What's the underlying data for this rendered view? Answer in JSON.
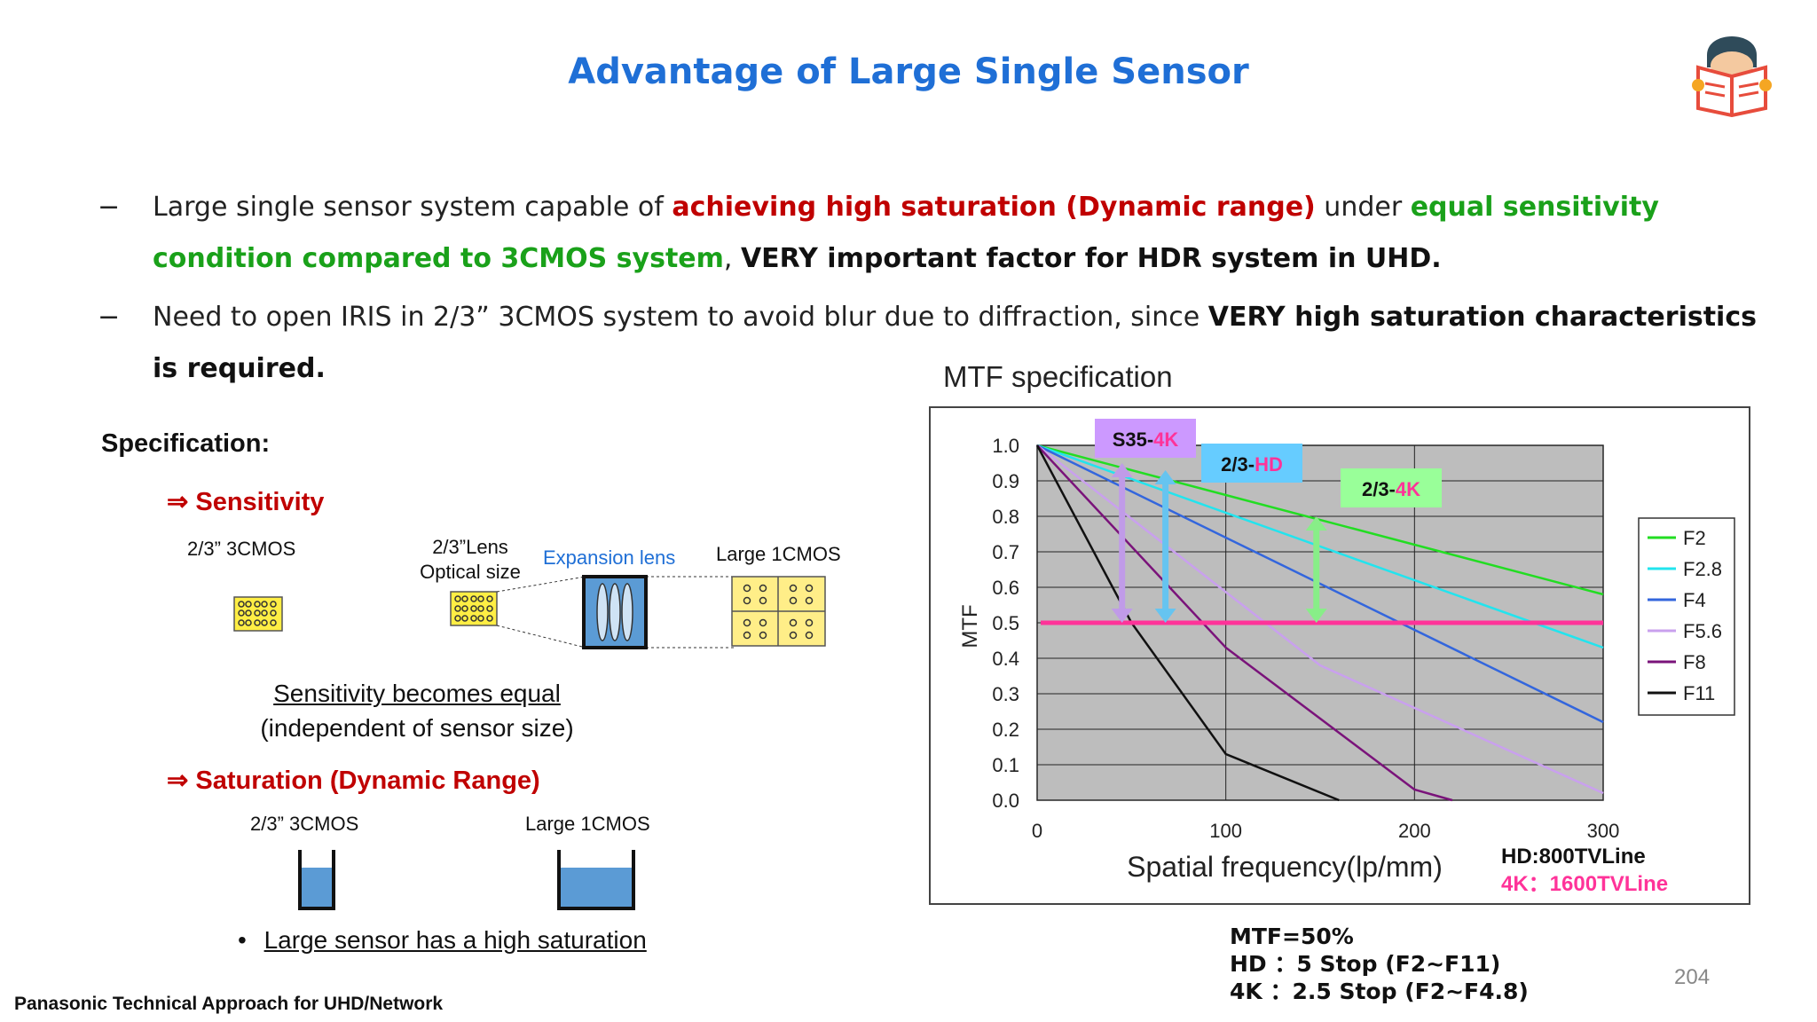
{
  "title": "Advantage of Large Single Sensor",
  "bullets": [
    {
      "dash": "−",
      "t1": "Large single sensor system capable of ",
      "t2": "achieving high saturation (Dynamic range)",
      "t3": " under ",
      "t4": "equal sensitivity condition compared to 3CMOS system",
      "t5": ", ",
      "t6": "VERY important factor for HDR system in UHD."
    },
    {
      "dash": "−",
      "t1": "Need to open IRIS in 2/3” 3CMOS system to avoid blur due to diffraction, since ",
      "t2": "VERY high saturation characteristics is required."
    }
  ],
  "spec": {
    "heading": "Specification:",
    "sensitivity": "⇒ Sensitivity",
    "label_3cmos": "2/3” 3CMOS",
    "label_lens_1": "2/3”Lens",
    "label_lens_2": "Optical size",
    "label_expansion": "Expansion lens",
    "label_large": "Large 1CMOS",
    "equal_1": "Sensitivity becomes equal",
    "equal_2": "(independent of sensor size)",
    "saturation": "⇒ Saturation (Dynamic Range)",
    "sat_3cmos": "2/3”  3CMOS",
    "sat_large": "Large  1CMOS",
    "sat_bullet": "•",
    "sat_note": "Large sensor has a high saturation"
  },
  "mtf_title": "MTF specification",
  "chart_data": {
    "type": "line",
    "xlabel": "Spatial frequency(lp/mm)",
    "ylabel": "MTF",
    "xlim": [
      0,
      300
    ],
    "ylim": [
      0,
      1.0
    ],
    "x_ticks": [
      "0",
      "100",
      "200",
      "300"
    ],
    "y_ticks": [
      "0.0",
      "0.1",
      "0.2",
      "0.3",
      "0.4",
      "0.5",
      "0.6",
      "0.7",
      "0.8",
      "0.9",
      "1.0"
    ],
    "series": [
      {
        "name": "F2",
        "color": "#22dd22",
        "x": [
          0,
          300
        ],
        "y": [
          1.0,
          0.58
        ]
      },
      {
        "name": "F2.8",
        "color": "#22e4ee",
        "x": [
          0,
          300
        ],
        "y": [
          1.0,
          0.43
        ]
      },
      {
        "name": "F4",
        "color": "#3366dd",
        "x": [
          0,
          300
        ],
        "y": [
          1.0,
          0.22
        ]
      },
      {
        "name": "F5.6",
        "color": "#c9a0ee",
        "x": [
          0,
          150,
          300
        ],
        "y": [
          1.0,
          0.38,
          0.02
        ]
      },
      {
        "name": "F8",
        "color": "#7a137a",
        "x": [
          0,
          100,
          200,
          220
        ],
        "y": [
          1.0,
          0.43,
          0.03,
          0.0
        ]
      },
      {
        "name": "F11",
        "color": "#111111",
        "x": [
          0,
          50,
          100,
          160
        ],
        "y": [
          1.0,
          0.5,
          0.13,
          0.0
        ]
      }
    ],
    "threshold": {
      "y": 0.5,
      "color": "#ff3399"
    },
    "markers": [
      {
        "pre": "S35-",
        "post": "4K",
        "bg": "#cc99ff",
        "arrow_color": "#c09be8",
        "x": 45,
        "y_top": 0.95,
        "y_bottom": 0.5
      },
      {
        "pre": "2/3-",
        "post": "HD",
        "bg": "#66ccff",
        "arrow_color": "#66c4f0",
        "x": 68,
        "y_top": 0.93,
        "y_bottom": 0.5
      },
      {
        "pre": "2/3-",
        "post": "4K",
        "bg": "#99ff99",
        "arrow_color": "#88ee88",
        "x": 148,
        "y_top": 0.8,
        "y_bottom": 0.5
      }
    ]
  },
  "res_note": {
    "hd": "HD:800TVLine",
    "k4": "4K：1600TVLine"
  },
  "mtf_note": [
    "MTF=50%",
    "HD  ：5 Stop (F2~F11)",
    "4K  ：2.5 Stop (F2~F4.8)"
  ],
  "page_number": "204",
  "footer": "Panasonic Technical Approach for UHD/Network",
  "colors": {
    "title": "#1f6fd6",
    "red": "#c00000",
    "green": "#1aa11a",
    "pink_text": "#ff3399"
  }
}
